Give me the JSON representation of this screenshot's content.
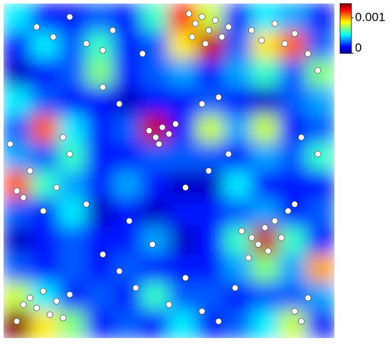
{
  "chart_data": {
    "type": "contour",
    "xlim": [
      0,
      100
    ],
    "ylim": [
      0,
      100
    ],
    "z": [
      [
        0.0005,
        0.0002,
        0.0002,
        0.0003,
        0.0002,
        0.0006,
        0.0012,
        0.0008,
        0.0002,
        0.0005,
        0.0004,
        0.0002
      ],
      [
        0.0002,
        0.0005,
        0.0003,
        0.0006,
        0.0002,
        0.0003,
        0.0009,
        0.0013,
        0.0003,
        0.0009,
        0.0011,
        0.0003
      ],
      [
        0.0001,
        0.0002,
        0.0003,
        0.0007,
        0.0002,
        0.0003,
        0.0004,
        0.0002,
        0.0004,
        0.0006,
        0.0003,
        0.0007
      ],
      [
        0.0005,
        0.0003,
        0.0002,
        0.0002,
        0.0001,
        0.0002,
        0.0002,
        0.0003,
        0.0002,
        0.0001,
        0.0003,
        0.0004
      ],
      [
        0.0003,
        0.0011,
        0.0005,
        0.0002,
        0.0003,
        0.0013,
        0.0002,
        0.0008,
        0.0004,
        0.0008,
        0.0002,
        0.0003
      ],
      [
        0.0004,
        0.0003,
        0.0006,
        0.0002,
        0.0002,
        0.0003,
        0.0003,
        0.0003,
        0.0002,
        0.0004,
        0.0003,
        0.0006
      ],
      [
        0.0011,
        0.0006,
        0.0004,
        0.0002,
        0.0004,
        0.0002,
        0.0001,
        0.0001,
        0.0005,
        0.0002,
        0.0002,
        0.0002
      ],
      [
        0.0003,
        0.0002,
        0.0005,
        0.0001,
        0.0002,
        0.0001,
        0.0002,
        0.0002,
        0.0003,
        0.0004,
        0.0002,
        0.0003
      ],
      [
        0.0001,
        0.0002,
        0.0003,
        0.0002,
        0.0002,
        0.0004,
        0.0001,
        0.0002,
        0.0006,
        0.0013,
        0.0006,
        0.0002
      ],
      [
        0.0003,
        0.0002,
        0.0003,
        0.0002,
        0.0003,
        0.0002,
        0.0002,
        0.0002,
        0.0004,
        0.0007,
        0.0004,
        0.001
      ],
      [
        0.0008,
        0.0005,
        0.0002,
        0.0003,
        0.0002,
        0.0006,
        0.0003,
        0.0003,
        0.0002,
        0.0003,
        0.0003,
        0.0004
      ],
      [
        0.0014,
        0.0009,
        0.0007,
        0.0002,
        0.0003,
        0.0002,
        0.0005,
        0.0002,
        0.0003,
        0.0005,
        0.0008,
        0.0002
      ]
    ],
    "clim": [
      0,
      0.0014
    ],
    "cticks": [
      0,
      0.001
    ],
    "series": [
      {
        "color": "#ffffff",
        "x": [
          56,
          58,
          60,
          62,
          64,
          66,
          61,
          68,
          57,
          10,
          15,
          20,
          25,
          30,
          33,
          75,
          78,
          82,
          85,
          88,
          92,
          95,
          44,
          46,
          48,
          47,
          50,
          52,
          2,
          4,
          6,
          8,
          12,
          16,
          20,
          18,
          72,
          75,
          77,
          79,
          80,
          82,
          84,
          86,
          88,
          74,
          6,
          8,
          10,
          12,
          14,
          16,
          4,
          18,
          20,
          30,
          35,
          40,
          45,
          50,
          55,
          60,
          65,
          70,
          88,
          90,
          92,
          30,
          35,
          60,
          65,
          25,
          38,
          55,
          62,
          68,
          90,
          95,
          42
        ],
        "y": [
          97,
          94,
          96,
          92,
          95,
          90,
          88,
          93,
          90,
          93,
          90,
          96,
          88,
          86,
          92,
          92,
          89,
          94,
          88,
          91,
          85,
          80,
          62,
          60,
          63,
          58,
          61,
          64,
          58,
          44,
          42,
          50,
          38,
          45,
          55,
          60,
          32,
          30,
          28,
          33,
          26,
          35,
          30,
          38,
          40,
          24,
          10,
          12,
          9,
          14,
          7,
          11,
          5,
          6,
          13,
          25,
          20,
          15,
          28,
          10,
          18,
          8,
          5,
          15,
          8,
          5,
          12,
          75,
          70,
          70,
          72,
          40,
          35,
          45,
          50,
          55,
          60,
          55,
          85
        ]
      }
    ]
  }
}
